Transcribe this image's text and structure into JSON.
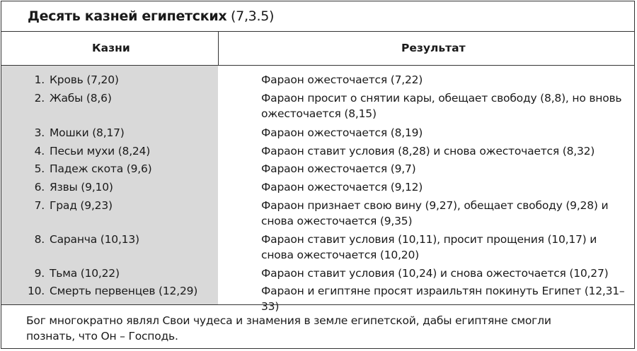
{
  "title": {
    "main": "Десять казней египетских",
    "ref": "(7,3.5)"
  },
  "header": {
    "col1": "Казни",
    "col2": "Результат"
  },
  "rows": [
    {
      "num": "1.",
      "plague": "Кровь (7,20)",
      "result": "Фараон ожесточается (7,22)"
    },
    {
      "num": "2.",
      "plague": "Жабы (8,6)",
      "result": "Фараон просит о снятии кары, обещает свободу (8,8), но вновь ожесточается (8,15)"
    },
    {
      "num": "3.",
      "plague": "Мошки (8,17)",
      "result": "Фараон ожесточается (8,19)"
    },
    {
      "num": "4.",
      "plague": "Песьи мухи (8,24)",
      "result": "Фараон ставит условия (8,28) и снова ожесточается (8,32)"
    },
    {
      "num": "5.",
      "plague": "Падеж скота (9,6)",
      "result": "Фараон ожесточается (9,7)"
    },
    {
      "num": "6.",
      "plague": "Язвы (9,10)",
      "result": "Фараон ожесточается (9,12)"
    },
    {
      "num": "7.",
      "plague": "Град (9,23)",
      "result": "Фараон признает свою вину (9,27), обещает свободу (9,28) и снова ожесточается (9,35)"
    },
    {
      "num": "8.",
      "plague": "Саранча (10,13)",
      "result": "Фараон ставит условия (10,11), просит прощения (10,17) и снова ожесточается (10,20)"
    },
    {
      "num": "9.",
      "plague": "Тьма (10,22)",
      "result": "Фараон ставит условия (10,24) и снова ожесточается (10,27)"
    },
    {
      "num": "10.",
      "plague": "Смерть первенцев (12,29)",
      "result": "Фараон и египтяне просят израильтян покинуть Египет (12,31–33)"
    }
  ],
  "footer": "Бог многократно являл Свои чудеса и знамения в земле египетской, дабы египтяне смогли познать, что Он – Господь."
}
